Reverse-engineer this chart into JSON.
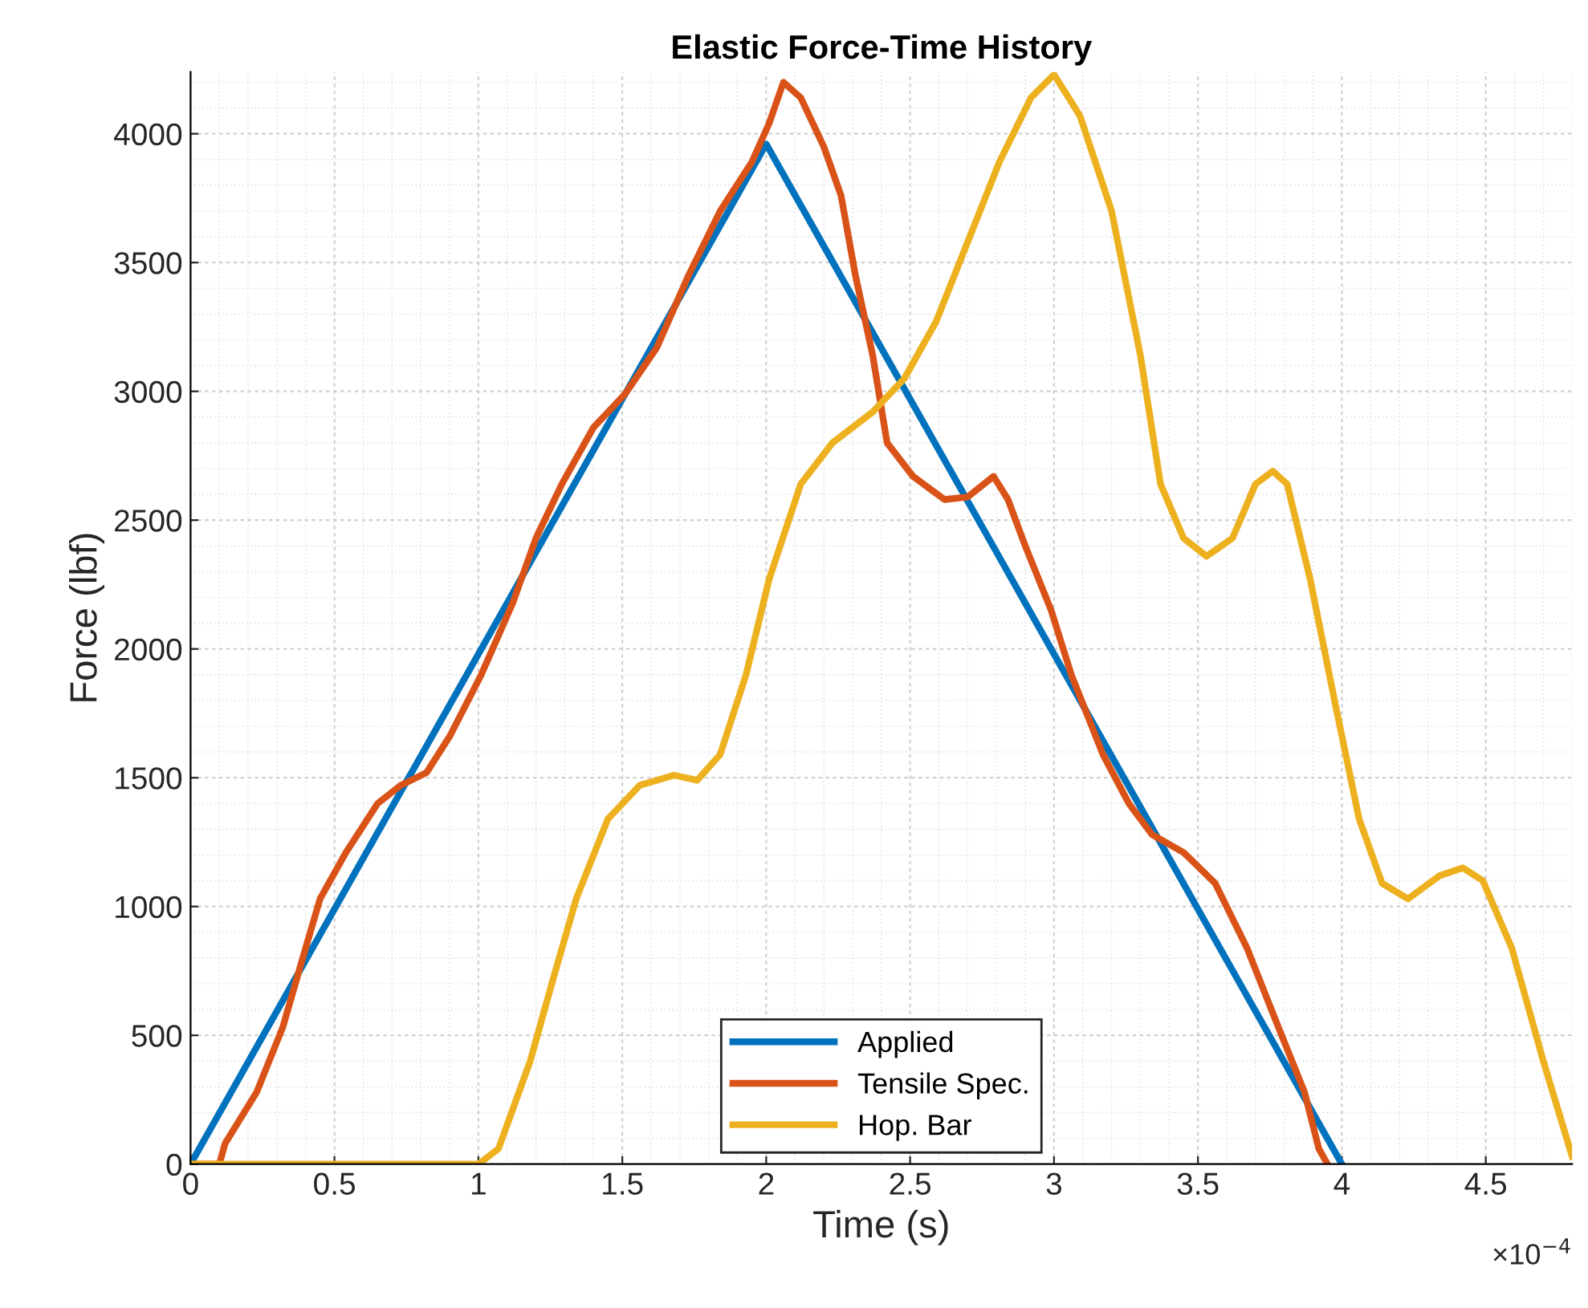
{
  "chart_data": {
    "type": "line",
    "title": "Elastic Force-Time History",
    "xlabel": "Time (s)",
    "ylabel": "Force (lbf)",
    "annotations": [
      "×10$^{−4}$"
    ],
    "xlim": [
      0,
      4.8
    ],
    "xticks": [
      0,
      0.5,
      1,
      1.5,
      2,
      2.5,
      3,
      3.5,
      4,
      4.5
    ],
    "ylim": [
      0,
      4240
    ],
    "yticks": [
      0,
      500,
      1000,
      1500,
      2000,
      2500,
      3000,
      3500,
      4000
    ],
    "grid": true,
    "legend": "bottom",
    "line_style": "solid",
    "marker": "none",
    "series": [
      {
        "name": "Applied",
        "color": "#0072bd",
        "x": [
          0,
          2,
          4
        ],
        "values": [
          0,
          3960,
          0
        ]
      },
      {
        "name": "Tensile Spec.",
        "color": "#d95319",
        "x": [
          0,
          0.1,
          0.12,
          0.23,
          0.32,
          0.4,
          0.45,
          0.54,
          0.65,
          0.73,
          0.82,
          0.9,
          1.01,
          1.12,
          1.2,
          1.29,
          1.4,
          1.51,
          1.62,
          1.73,
          1.84,
          1.95,
          2.01,
          2.06,
          2.12,
          2.2,
          2.26,
          2.31,
          2.37,
          2.42,
          2.51,
          2.62,
          2.7,
          2.79,
          2.84,
          2.9,
          2.99,
          3.06,
          3.17,
          3.26,
          3.34,
          3.45,
          3.56,
          3.67,
          3.78,
          3.87,
          3.92,
          3.95
        ],
        "values": [
          0,
          0,
          80,
          280,
          530,
          840,
          1030,
          1210,
          1400,
          1470,
          1520,
          1660,
          1900,
          2180,
          2430,
          2640,
          2860,
          2990,
          3170,
          3450,
          3700,
          3890,
          4040,
          4200,
          4140,
          3950,
          3760,
          3450,
          3140,
          2800,
          2670,
          2580,
          2590,
          2670,
          2580,
          2400,
          2150,
          1900,
          1590,
          1400,
          1280,
          1210,
          1090,
          840,
          530,
          280,
          60,
          0
        ]
      },
      {
        "name": "Hop. Bar",
        "color": "#edb120",
        "x": [
          0,
          1.0,
          1.07,
          1.18,
          1.26,
          1.34,
          1.45,
          1.56,
          1.68,
          1.76,
          1.84,
          1.93,
          2.01,
          2.12,
          2.23,
          2.37,
          2.48,
          2.59,
          2.7,
          2.81,
          2.92,
          3.0,
          3.09,
          3.2,
          3.3,
          3.37,
          3.45,
          3.53,
          3.62,
          3.7,
          3.76,
          3.81,
          3.89,
          3.98,
          4.06,
          4.14,
          4.23,
          4.34,
          4.42,
          4.49,
          4.59,
          4.7,
          4.8
        ],
        "values": [
          0,
          0,
          60,
          400,
          720,
          1030,
          1340,
          1470,
          1510,
          1490,
          1590,
          1900,
          2270,
          2640,
          2800,
          2920,
          3050,
          3270,
          3580,
          3890,
          4140,
          4230,
          4070,
          3700,
          3140,
          2640,
          2430,
          2360,
          2430,
          2640,
          2690,
          2640,
          2270,
          1770,
          1340,
          1090,
          1030,
          1120,
          1150,
          1100,
          840,
          400,
          30
        ]
      }
    ]
  }
}
